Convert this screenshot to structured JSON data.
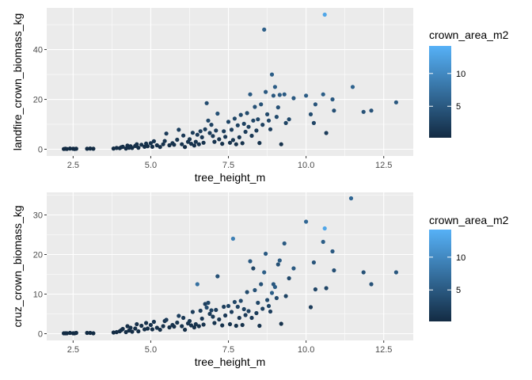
{
  "chart_data": [
    {
      "type": "scatter",
      "xlabel": "tree_height_m",
      "ylabel": "landfire_crown_biomass_kg",
      "xlim": [
        1.65,
        13.45
      ],
      "ylim": [
        -2.7,
        56.7
      ],
      "x_ticks": [
        2.5,
        5.0,
        7.5,
        10.0,
        12.5
      ],
      "x_tick_labels": [
        "2.5",
        "5.0",
        "7.5",
        "10.0",
        "12.5"
      ],
      "y_ticks": [
        0,
        20,
        40
      ],
      "y_tick_labels": [
        "0",
        "20",
        "40"
      ],
      "grid": true,
      "legend": {
        "title": "crown_area_m2",
        "placement": "right",
        "range": [
          0.2,
          14.2
        ],
        "breaks": [
          5,
          10
        ],
        "break_labels": [
          "5",
          "10"
        ],
        "colors": {
          "low": "#132b43",
          "high": "#56b1f7"
        }
      },
      "points": [
        [
          2.2,
          0.1,
          0.2
        ],
        [
          2.25,
          0.2,
          0.2
        ],
        [
          2.3,
          0.1,
          0.2
        ],
        [
          2.4,
          0.3,
          0.3
        ],
        [
          2.5,
          0.2,
          0.2
        ],
        [
          2.55,
          0.1,
          0.2
        ],
        [
          2.6,
          0.2,
          0.3
        ],
        [
          2.95,
          0.2,
          0.3
        ],
        [
          3.05,
          0.3,
          0.3
        ],
        [
          3.15,
          0.2,
          0.3
        ],
        [
          3.8,
          0.3,
          0.3
        ],
        [
          3.9,
          0.5,
          0.4
        ],
        [
          4.0,
          0.4,
          0.4
        ],
        [
          4.05,
          0.8,
          0.4
        ],
        [
          4.1,
          1.0,
          0.5
        ],
        [
          4.2,
          0.3,
          0.4
        ],
        [
          4.25,
          1.5,
          0.6
        ],
        [
          4.3,
          0.6,
          0.4
        ],
        [
          4.35,
          1.2,
          0.6
        ],
        [
          4.4,
          0.5,
          0.4
        ],
        [
          4.5,
          1.3,
          0.6
        ],
        [
          4.55,
          2.0,
          0.8
        ],
        [
          4.6,
          0.6,
          0.5
        ],
        [
          4.7,
          1.8,
          0.7
        ],
        [
          4.8,
          1.0,
          0.6
        ],
        [
          4.85,
          2.3,
          0.9
        ],
        [
          4.9,
          1.2,
          0.6
        ],
        [
          5.0,
          2.4,
          0.9
        ],
        [
          5.05,
          1.0,
          0.6
        ],
        [
          5.1,
          3.2,
          1.1
        ],
        [
          5.2,
          1.6,
          0.7
        ],
        [
          5.3,
          0.9,
          0.6
        ],
        [
          5.4,
          2.0,
          0.8
        ],
        [
          5.45,
          3.3,
          1.2
        ],
        [
          5.5,
          6.3,
          1.8
        ],
        [
          5.6,
          1.6,
          0.7
        ],
        [
          5.7,
          2.4,
          0.9
        ],
        [
          5.75,
          1.8,
          0.8
        ],
        [
          5.85,
          3.8,
          1.3
        ],
        [
          5.9,
          7.8,
          2.3
        ],
        [
          6.0,
          2.0,
          0.9
        ],
        [
          6.05,
          5.5,
          1.6
        ],
        [
          6.1,
          0.9,
          0.6
        ],
        [
          6.2,
          3.0,
          1.1
        ],
        [
          6.25,
          4.0,
          1.3
        ],
        [
          6.3,
          2.2,
          0.9
        ],
        [
          6.35,
          6.6,
          2.0
        ],
        [
          6.4,
          1.5,
          0.8
        ],
        [
          6.45,
          3.0,
          1.1
        ],
        [
          6.5,
          5.8,
          1.8
        ],
        [
          6.55,
          2.0,
          0.9
        ],
        [
          6.6,
          7.2,
          2.1
        ],
        [
          6.65,
          4.8,
          1.5
        ],
        [
          6.7,
          2.6,
          1.0
        ],
        [
          6.75,
          8.0,
          2.3
        ],
        [
          6.8,
          18.5,
          3.6
        ],
        [
          6.85,
          11.5,
          3.0
        ],
        [
          6.9,
          6.5,
          1.9
        ],
        [
          6.95,
          9.8,
          2.5
        ],
        [
          7.0,
          5.3,
          1.7
        ],
        [
          7.05,
          3.0,
          1.1
        ],
        [
          7.1,
          7.5,
          2.2
        ],
        [
          7.15,
          14.3,
          4.2
        ],
        [
          7.2,
          4.0,
          1.4
        ],
        [
          7.3,
          2.2,
          0.9
        ],
        [
          7.35,
          7.2,
          2.1
        ],
        [
          7.4,
          5.0,
          1.6
        ],
        [
          7.5,
          11.0,
          2.9
        ],
        [
          7.55,
          2.6,
          1.0
        ],
        [
          7.6,
          7.8,
          2.2
        ],
        [
          7.65,
          3.7,
          1.3
        ],
        [
          7.7,
          12.3,
          3.1
        ],
        [
          7.75,
          2.0,
          0.9
        ],
        [
          7.8,
          9.6,
          2.6
        ],
        [
          7.85,
          4.8,
          1.5
        ],
        [
          7.9,
          13.8,
          3.3
        ],
        [
          7.95,
          2.4,
          1.0
        ],
        [
          8.0,
          10.2,
          2.6
        ],
        [
          8.05,
          7.0,
          2.0
        ],
        [
          8.1,
          14.5,
          3.5
        ],
        [
          8.15,
          9.0,
          2.4
        ],
        [
          8.2,
          22.0,
          5.0
        ],
        [
          8.25,
          5.4,
          1.7
        ],
        [
          8.3,
          11.5,
          2.9
        ],
        [
          8.35,
          17.0,
          4.2
        ],
        [
          8.4,
          7.5,
          2.1
        ],
        [
          8.45,
          12.0,
          3.0
        ],
        [
          8.5,
          2.5,
          1.0
        ],
        [
          8.55,
          18.0,
          4.2
        ],
        [
          8.6,
          9.8,
          2.5
        ],
        [
          8.65,
          48.0,
          5.6
        ],
        [
          8.7,
          23.0,
          5.0
        ],
        [
          8.75,
          14.0,
          3.4
        ],
        [
          8.8,
          11.5,
          3.0
        ],
        [
          8.85,
          8.0,
          2.2
        ],
        [
          8.9,
          30.0,
          5.5
        ],
        [
          8.95,
          21.5,
          4.8
        ],
        [
          9.0,
          25.0,
          5.4
        ],
        [
          9.05,
          13.0,
          3.4
        ],
        [
          9.1,
          16.8,
          4.1
        ],
        [
          9.15,
          21.8,
          5.2
        ],
        [
          9.2,
          2.0,
          0.9
        ],
        [
          9.3,
          22.0,
          5.1
        ],
        [
          9.35,
          10.5,
          2.8
        ],
        [
          9.45,
          12.0,
          3.2
        ],
        [
          9.6,
          20.5,
          5.0
        ],
        [
          10.0,
          21.5,
          5.3
        ],
        [
          10.15,
          14.0,
          3.6
        ],
        [
          10.25,
          10.5,
          2.9
        ],
        [
          10.3,
          18.0,
          4.5
        ],
        [
          10.55,
          22.0,
          5.5
        ],
        [
          10.6,
          54.0,
          13.0
        ],
        [
          10.65,
          6.5,
          2.0
        ],
        [
          10.85,
          20.0,
          5.0
        ],
        [
          10.9,
          15.5,
          4.0
        ],
        [
          11.5,
          25.0,
          6.0
        ],
        [
          11.85,
          15.0,
          4.2
        ],
        [
          12.1,
          15.5,
          4.3
        ],
        [
          12.9,
          18.8,
          4.8
        ]
      ]
    },
    {
      "type": "scatter",
      "xlabel": "tree_height_m",
      "ylabel": "cruz_crown_biomass_kg",
      "xlim": [
        1.65,
        13.45
      ],
      "ylim": [
        -1.7,
        35.7
      ],
      "x_ticks": [
        2.5,
        5.0,
        7.5,
        10.0,
        12.5
      ],
      "x_tick_labels": [
        "2.5",
        "5.0",
        "7.5",
        "10.0",
        "12.5"
      ],
      "y_ticks": [
        0,
        10,
        20,
        30
      ],
      "y_tick_labels": [
        "0",
        "10",
        "20",
        "30"
      ],
      "grid": true,
      "legend": {
        "title": "crown_area_m2",
        "placement": "right",
        "range": [
          0.2,
          14.2
        ],
        "breaks": [
          5,
          10
        ],
        "break_labels": [
          "5",
          "10"
        ],
        "colors": {
          "low": "#132b43",
          "high": "#56b1f7"
        }
      },
      "points": [
        [
          2.2,
          0.1,
          0.2
        ],
        [
          2.25,
          0.1,
          0.2
        ],
        [
          2.3,
          0.1,
          0.2
        ],
        [
          2.4,
          0.2,
          0.3
        ],
        [
          2.5,
          0.1,
          0.2
        ],
        [
          2.55,
          0.1,
          0.2
        ],
        [
          2.6,
          0.2,
          0.3
        ],
        [
          2.95,
          0.2,
          0.3
        ],
        [
          3.05,
          0.2,
          0.3
        ],
        [
          3.15,
          0.1,
          0.3
        ],
        [
          3.8,
          0.3,
          0.3
        ],
        [
          3.9,
          0.4,
          0.4
        ],
        [
          4.0,
          0.6,
          0.4
        ],
        [
          4.05,
          0.9,
          0.4
        ],
        [
          4.1,
          1.2,
          0.5
        ],
        [
          4.2,
          0.4,
          0.4
        ],
        [
          4.25,
          1.9,
          0.6
        ],
        [
          4.3,
          0.8,
          0.4
        ],
        [
          4.35,
          1.5,
          0.6
        ],
        [
          4.4,
          0.5,
          0.4
        ],
        [
          4.5,
          1.3,
          0.6
        ],
        [
          4.55,
          2.4,
          0.8
        ],
        [
          4.6,
          0.6,
          0.5
        ],
        [
          4.7,
          2.0,
          0.7
        ],
        [
          4.8,
          1.1,
          0.6
        ],
        [
          4.85,
          2.7,
          0.9
        ],
        [
          4.9,
          1.3,
          0.6
        ],
        [
          5.0,
          2.2,
          0.9
        ],
        [
          5.05,
          1.1,
          0.6
        ],
        [
          5.1,
          3.0,
          1.1
        ],
        [
          5.2,
          1.5,
          0.7
        ],
        [
          5.3,
          1.0,
          0.6
        ],
        [
          5.4,
          1.9,
          0.8
        ],
        [
          5.45,
          3.2,
          1.2
        ],
        [
          5.5,
          3.5,
          1.8
        ],
        [
          5.6,
          1.6,
          0.7
        ],
        [
          5.7,
          2.2,
          0.9
        ],
        [
          5.75,
          1.8,
          0.8
        ],
        [
          5.85,
          2.8,
          1.3
        ],
        [
          5.9,
          4.5,
          2.3
        ],
        [
          6.0,
          1.9,
          0.9
        ],
        [
          6.05,
          4.0,
          1.6
        ],
        [
          6.1,
          1.0,
          0.6
        ],
        [
          6.2,
          2.6,
          1.1
        ],
        [
          6.25,
          3.2,
          1.3
        ],
        [
          6.3,
          2.1,
          0.9
        ],
        [
          6.35,
          5.5,
          2.0
        ],
        [
          6.4,
          1.6,
          0.8
        ],
        [
          6.45,
          2.4,
          1.1
        ],
        [
          6.5,
          12.5,
          7.5
        ],
        [
          6.55,
          1.9,
          0.9
        ],
        [
          6.6,
          5.8,
          2.1
        ],
        [
          6.65,
          3.8,
          1.5
        ],
        [
          6.7,
          2.3,
          1.0
        ],
        [
          6.75,
          7.5,
          2.3
        ],
        [
          6.8,
          6.6,
          3.6
        ],
        [
          6.85,
          7.8,
          3.0
        ],
        [
          6.9,
          5.0,
          1.9
        ],
        [
          6.95,
          5.9,
          2.5
        ],
        [
          7.0,
          4.3,
          1.7
        ],
        [
          7.05,
          2.7,
          1.1
        ],
        [
          7.1,
          6.0,
          2.2
        ],
        [
          7.15,
          14.5,
          4.2
        ],
        [
          7.2,
          3.6,
          1.4
        ],
        [
          7.3,
          2.1,
          0.9
        ],
        [
          7.35,
          6.8,
          2.1
        ],
        [
          7.4,
          4.6,
          1.6
        ],
        [
          7.5,
          7.0,
          2.9
        ],
        [
          7.55,
          2.4,
          1.0
        ],
        [
          7.6,
          5.5,
          2.2
        ],
        [
          7.65,
          24.0,
          9.0
        ],
        [
          7.7,
          8.0,
          3.1
        ],
        [
          7.75,
          2.0,
          0.9
        ],
        [
          7.8,
          6.8,
          2.6
        ],
        [
          7.85,
          4.0,
          1.5
        ],
        [
          7.9,
          8.3,
          3.3
        ],
        [
          7.95,
          2.2,
          1.0
        ],
        [
          8.0,
          6.2,
          2.6
        ],
        [
          8.05,
          4.7,
          2.0
        ],
        [
          8.1,
          10.5,
          3.5
        ],
        [
          8.15,
          5.7,
          2.4
        ],
        [
          8.2,
          18.3,
          5.0
        ],
        [
          8.25,
          4.0,
          1.7
        ],
        [
          8.3,
          16.5,
          2.9
        ],
        [
          8.35,
          11.0,
          4.2
        ],
        [
          8.4,
          5.2,
          2.1
        ],
        [
          8.45,
          7.8,
          3.0
        ],
        [
          8.5,
          2.0,
          1.0
        ],
        [
          8.55,
          12.5,
          4.2
        ],
        [
          8.6,
          6.3,
          2.5
        ],
        [
          8.65,
          15.5,
          5.6
        ],
        [
          8.7,
          20.2,
          5.0
        ],
        [
          8.75,
          8.5,
          3.4
        ],
        [
          8.8,
          7.0,
          3.0
        ],
        [
          8.85,
          5.6,
          2.2
        ],
        [
          8.9,
          10.3,
          5.5
        ],
        [
          8.95,
          12.5,
          4.8
        ],
        [
          9.0,
          11.8,
          5.4
        ],
        [
          9.05,
          9.0,
          3.4
        ],
        [
          9.1,
          17.5,
          4.1
        ],
        [
          9.15,
          18.5,
          5.2
        ],
        [
          9.2,
          2.5,
          0.9
        ],
        [
          9.3,
          22.8,
          5.1
        ],
        [
          9.35,
          9.5,
          2.8
        ],
        [
          9.45,
          14.0,
          3.2
        ],
        [
          9.6,
          16.5,
          5.0
        ],
        [
          10.0,
          28.3,
          6.5
        ],
        [
          10.15,
          6.7,
          2.0
        ],
        [
          10.25,
          18.0,
          4.5
        ],
        [
          10.3,
          11.2,
          2.9
        ],
        [
          10.55,
          23.2,
          5.5
        ],
        [
          10.6,
          26.6,
          13.0
        ],
        [
          10.65,
          11.5,
          3.0
        ],
        [
          10.85,
          20.8,
          5.0
        ],
        [
          10.9,
          16.0,
          4.0
        ],
        [
          11.45,
          34.2,
          6.5
        ],
        [
          11.85,
          15.5,
          4.2
        ],
        [
          12.1,
          12.5,
          4.3
        ],
        [
          12.9,
          15.5,
          4.8
        ]
      ]
    }
  ]
}
